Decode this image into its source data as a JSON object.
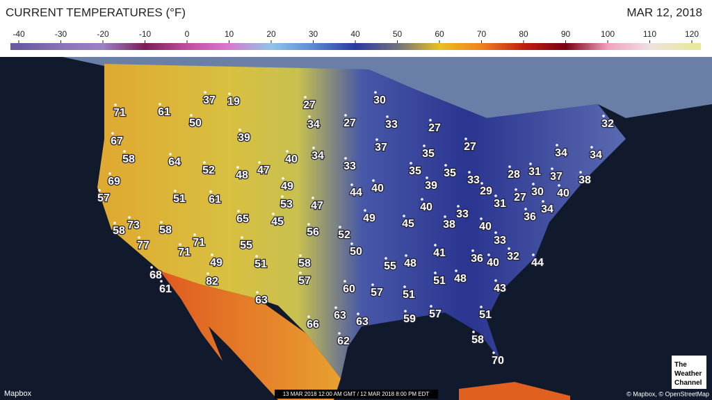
{
  "header": {
    "title": "CURRENT TEMPERATURES (°F)",
    "date": "MAR 12, 2018"
  },
  "scale": {
    "ticks": [
      -40,
      -30,
      -20,
      -10,
      0,
      10,
      20,
      30,
      40,
      50,
      60,
      70,
      80,
      90,
      100,
      110,
      120
    ],
    "colors": [
      "#6b5aa0",
      "#8a72b8",
      "#9d7fc4",
      "#7a1f5a",
      "#c04ca0",
      "#d67ad0",
      "#8fc4e8",
      "#5a8ad0",
      "#2a3aa0",
      "#707080",
      "#e8c020",
      "#f08020",
      "#c02010",
      "#7a0010",
      "#f0a0c0",
      "#f0e0e0",
      "#e8e8a0"
    ]
  },
  "temperatures": [
    71,
    61,
    37,
    19,
    27,
    30,
    50,
    34,
    27,
    33,
    27,
    32,
    67,
    39,
    37,
    27,
    58,
    64,
    34,
    35,
    34,
    34,
    52,
    48,
    47,
    40,
    33,
    35,
    35,
    28,
    31,
    37,
    38,
    69,
    49,
    44,
    40,
    39,
    33,
    29,
    30,
    40,
    57,
    51,
    61,
    53,
    47,
    31,
    27,
    34,
    40,
    49,
    65,
    45,
    33,
    36,
    58,
    73,
    58,
    56,
    52,
    45,
    38,
    40,
    71,
    55,
    33,
    77,
    71,
    50,
    41,
    32,
    49,
    51,
    58,
    55,
    48,
    36,
    40,
    44,
    68,
    57,
    51,
    48,
    82,
    61,
    60,
    57,
    51,
    43,
    63,
    57,
    51,
    63,
    63,
    59,
    66,
    58,
    62,
    70
  ],
  "footer": {
    "provider": "Mapbox",
    "timestamp": "13 MAR 2018 12:00 AM GMT / 12 MAR 2018 8:00 PM EDT",
    "credits": "© Mapbox, © OpenStreetMap",
    "logo": [
      "The",
      "Weather",
      "Channel"
    ]
  }
}
